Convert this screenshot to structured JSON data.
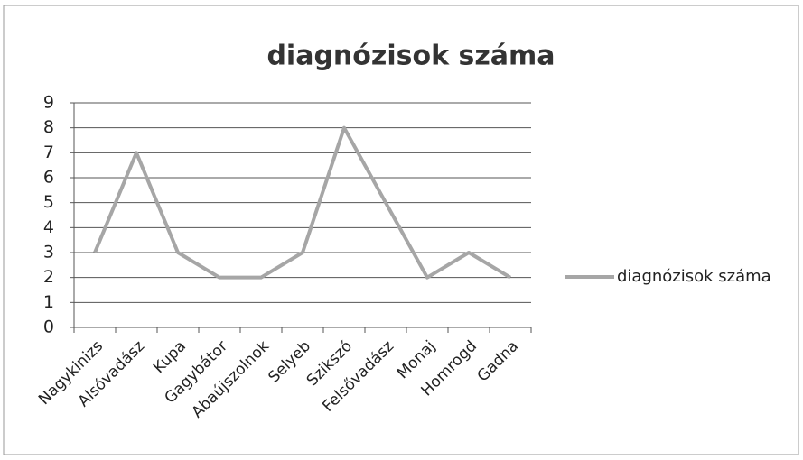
{
  "chart_data": {
    "type": "line",
    "title": "diagnózisok száma",
    "categories": [
      "Nagykinizs",
      "Alsóvadász",
      "Kupa",
      "Gagybátor",
      "Abaújszolnok",
      "Selyeb",
      "Szikszó",
      "Felsővadász",
      "Monaj",
      "Homrogd",
      "Gadna"
    ],
    "series": [
      {
        "name": "diagnózisok száma",
        "color": "#a6a6a6",
        "values": [
          3,
          7,
          3,
          2,
          2,
          3,
          8,
          5,
          2,
          3,
          2
        ]
      }
    ],
    "ylim": [
      0,
      9
    ],
    "yticks": [
      0,
      1,
      2,
      3,
      4,
      5,
      6,
      7,
      8,
      9
    ],
    "grid": true,
    "legend": "right"
  }
}
